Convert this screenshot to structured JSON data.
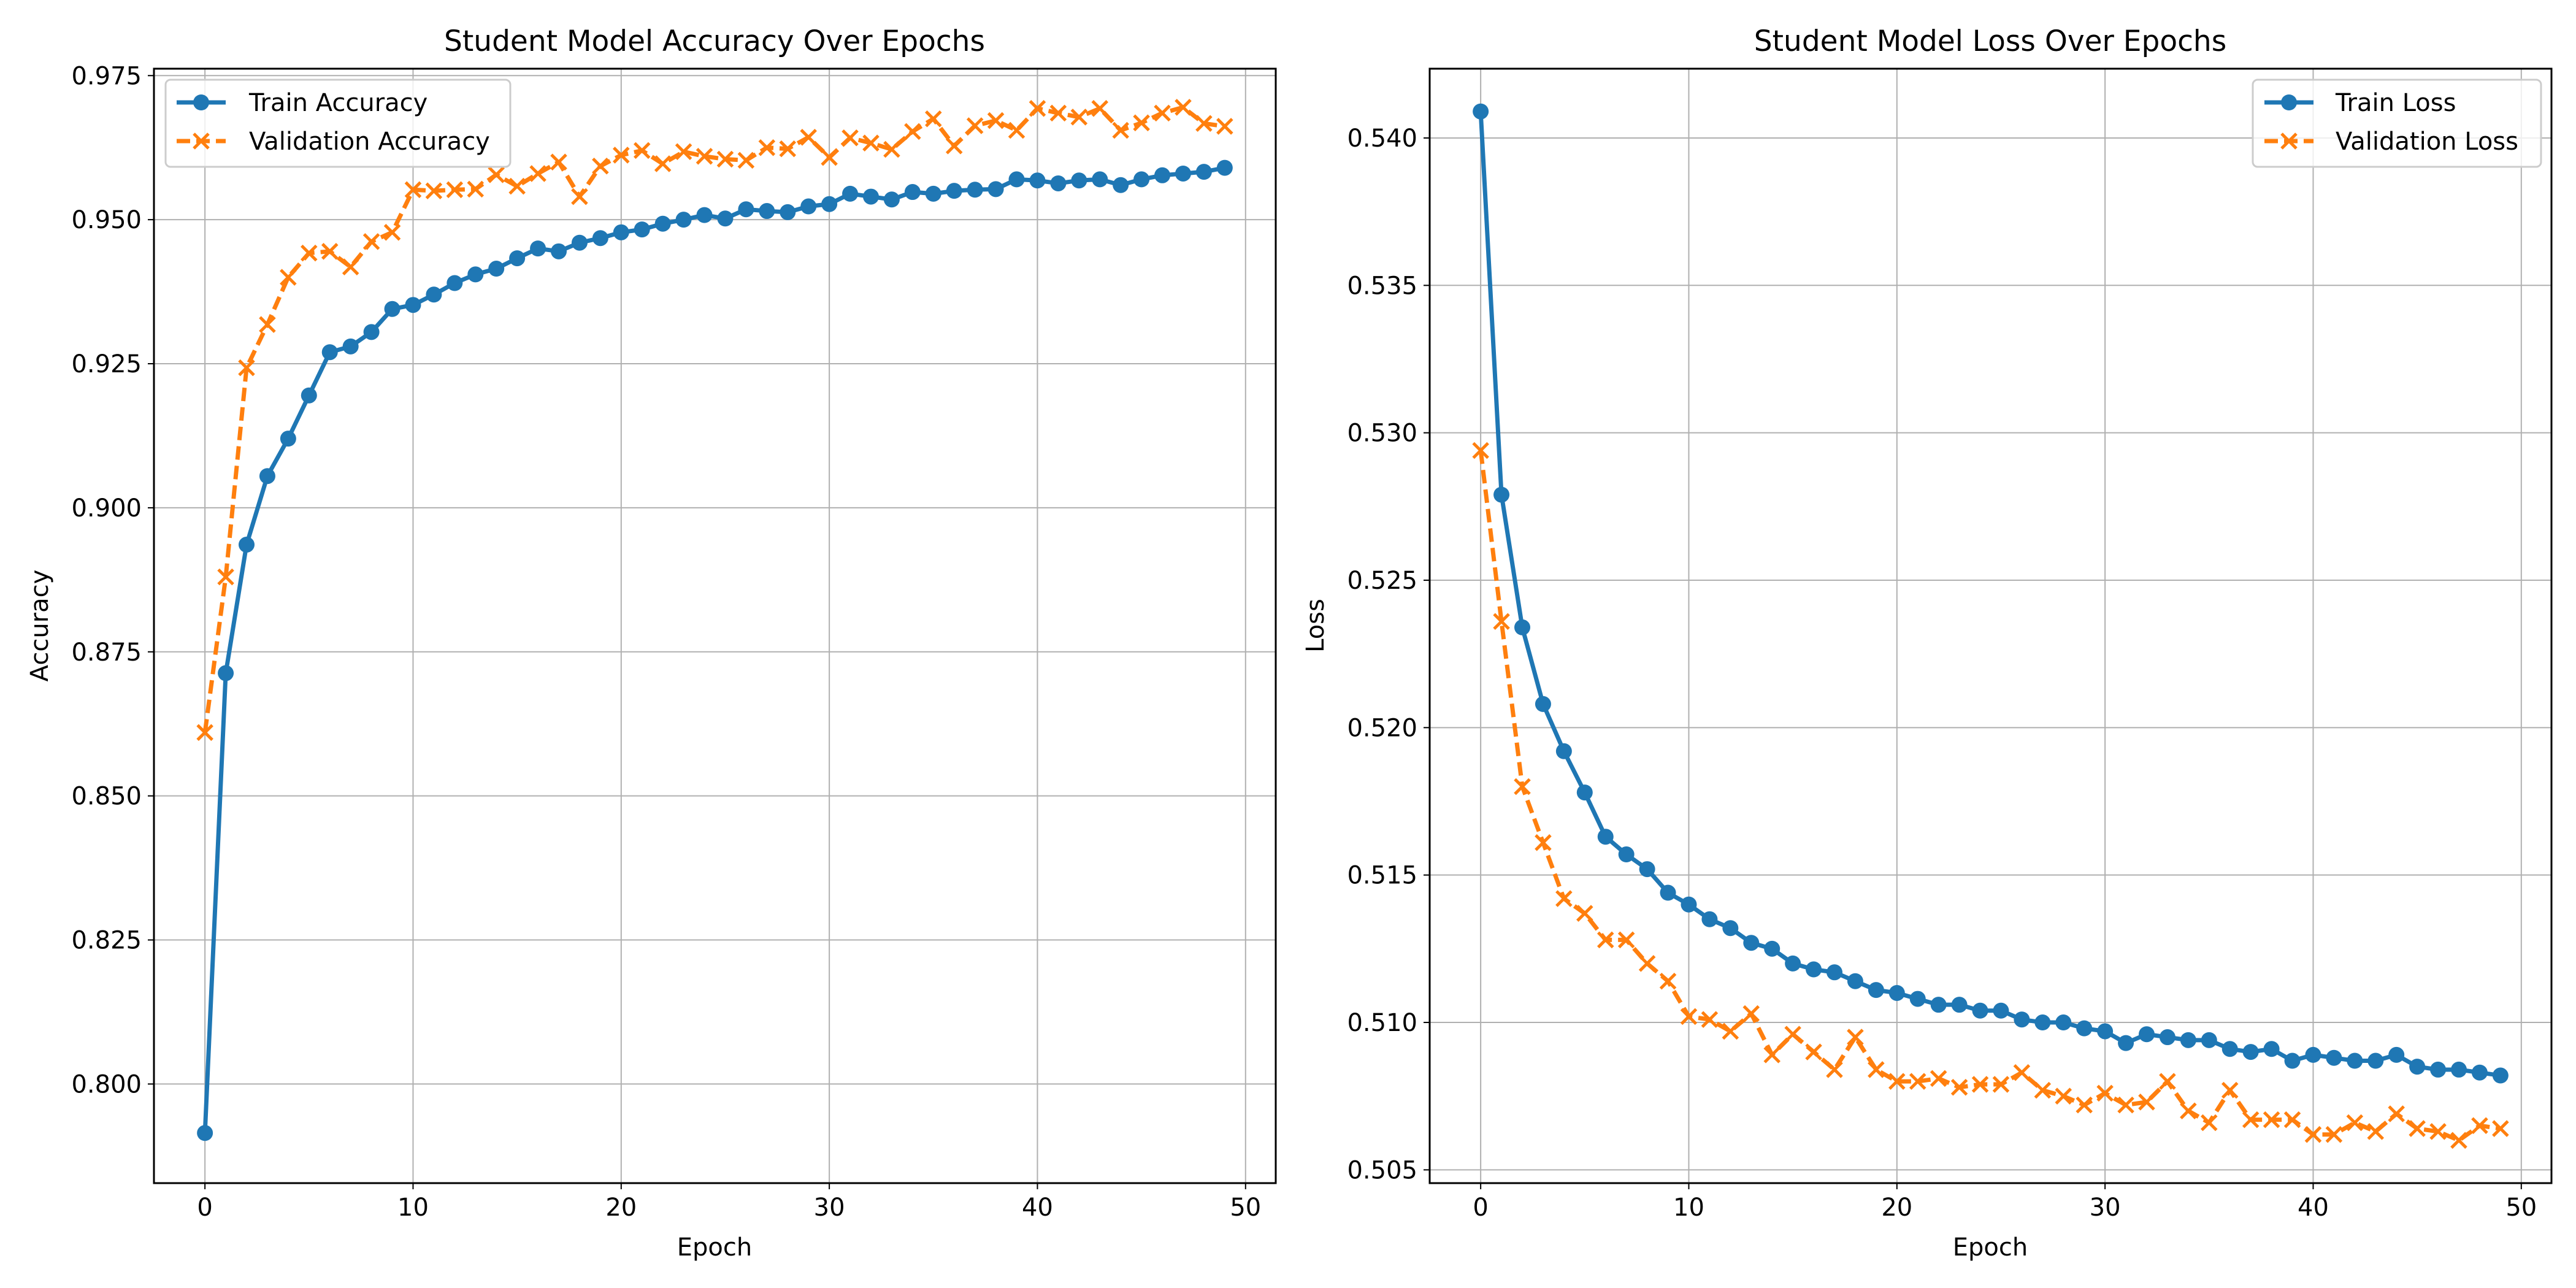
{
  "chart_data": [
    {
      "type": "line",
      "title": "Student Model Accuracy Over Epochs",
      "xlabel": "Epoch",
      "ylabel": "Accuracy",
      "xlim": [
        -2.45,
        51.45
      ],
      "ylim": [
        0.7828,
        0.9762
      ],
      "xticks": [
        0,
        10,
        20,
        30,
        40,
        50
      ],
      "xtick_labels": [
        "0",
        "10",
        "20",
        "30",
        "40",
        "50"
      ],
      "yticks": [
        0.8,
        0.825,
        0.85,
        0.875,
        0.9,
        0.925,
        0.95,
        0.975
      ],
      "ytick_labels": [
        "0.800",
        "0.825",
        "0.850",
        "0.875",
        "0.900",
        "0.925",
        "0.950",
        "0.975"
      ],
      "grid": true,
      "legend": "upper left",
      "x": [
        0,
        1,
        2,
        3,
        4,
        5,
        6,
        7,
        8,
        9,
        10,
        11,
        12,
        13,
        14,
        15,
        16,
        17,
        18,
        19,
        20,
        21,
        22,
        23,
        24,
        25,
        26,
        27,
        28,
        29,
        30,
        31,
        32,
        33,
        34,
        35,
        36,
        37,
        38,
        39,
        40,
        41,
        42,
        43,
        44,
        45,
        46,
        47,
        48,
        49
      ],
      "series": [
        {
          "name": "Train Accuracy",
          "color": "#1f77b4",
          "marker": "circle",
          "linestyle": "solid",
          "values": [
            0.7915,
            0.8713,
            0.8936,
            0.9055,
            0.912,
            0.9195,
            0.927,
            0.928,
            0.9305,
            0.9345,
            0.9352,
            0.937,
            0.939,
            0.9405,
            0.9415,
            0.9433,
            0.945,
            0.9445,
            0.946,
            0.9468,
            0.9478,
            0.9483,
            0.9493,
            0.95,
            0.9508,
            0.9502,
            0.9518,
            0.9515,
            0.9513,
            0.9523,
            0.9527,
            0.9545,
            0.954,
            0.9535,
            0.9548,
            0.9545,
            0.955,
            0.9552,
            0.9553,
            0.957,
            0.9568,
            0.9563,
            0.9568,
            0.957,
            0.956,
            0.957,
            0.9577,
            0.958,
            0.9583,
            0.959
          ]
        },
        {
          "name": "Validation Accuracy",
          "color": "#ff7f0e",
          "marker": "x",
          "linestyle": "dashed",
          "values": [
            0.861,
            0.888,
            0.9243,
            0.9318,
            0.94,
            0.9442,
            0.9445,
            0.9418,
            0.9462,
            0.9478,
            0.9552,
            0.955,
            0.9552,
            0.9553,
            0.9578,
            0.9558,
            0.958,
            0.96,
            0.954,
            0.9593,
            0.9612,
            0.962,
            0.9597,
            0.9618,
            0.961,
            0.9605,
            0.9603,
            0.9625,
            0.9623,
            0.9643,
            0.9608,
            0.9642,
            0.9633,
            0.9622,
            0.9653,
            0.9675,
            0.9628,
            0.9663,
            0.9672,
            0.9655,
            0.9693,
            0.9685,
            0.9678,
            0.9693,
            0.9655,
            0.9668,
            0.9685,
            0.9695,
            0.9667,
            0.9662
          ]
        }
      ]
    },
    {
      "type": "line",
      "title": "Student Model Loss Over Epochs",
      "xlabel": "Epoch",
      "ylabel": "Loss",
      "xlim": [
        -2.45,
        51.45
      ],
      "ylim": [
        0.50455,
        0.54235
      ],
      "xticks": [
        0,
        10,
        20,
        30,
        40,
        50
      ],
      "xtick_labels": [
        "0",
        "10",
        "20",
        "30",
        "40",
        "50"
      ],
      "yticks": [
        0.505,
        0.51,
        0.515,
        0.52,
        0.525,
        0.53,
        0.535,
        0.54
      ],
      "ytick_labels": [
        "0.505",
        "0.510",
        "0.515",
        "0.520",
        "0.525",
        "0.530",
        "0.535",
        "0.540"
      ],
      "grid": true,
      "legend": "upper right",
      "x": [
        0,
        1,
        2,
        3,
        4,
        5,
        6,
        7,
        8,
        9,
        10,
        11,
        12,
        13,
        14,
        15,
        16,
        17,
        18,
        19,
        20,
        21,
        22,
        23,
        24,
        25,
        26,
        27,
        28,
        29,
        30,
        31,
        32,
        33,
        34,
        35,
        36,
        37,
        38,
        39,
        40,
        41,
        42,
        43,
        44,
        45,
        46,
        47,
        48,
        49
      ],
      "series": [
        {
          "name": "Train Loss",
          "color": "#1f77b4",
          "marker": "circle",
          "linestyle": "solid",
          "values": [
            0.5409,
            0.5279,
            0.5234,
            0.5208,
            0.5192,
            0.5178,
            0.5163,
            0.5157,
            0.5152,
            0.5144,
            0.514,
            0.5135,
            0.5132,
            0.5127,
            0.5125,
            0.512,
            0.5118,
            0.5117,
            0.5114,
            0.5111,
            0.511,
            0.5108,
            0.5106,
            0.5106,
            0.5104,
            0.5104,
            0.5101,
            0.51,
            0.51,
            0.5098,
            0.5097,
            0.5093,
            0.5096,
            0.5095,
            0.5094,
            0.5094,
            0.5091,
            0.509,
            0.5091,
            0.5087,
            0.5089,
            0.5088,
            0.5087,
            0.5087,
            0.5089,
            0.5085,
            0.5084,
            0.5084,
            0.5083,
            0.5082
          ]
        },
        {
          "name": "Validation Loss",
          "color": "#ff7f0e",
          "marker": "x",
          "linestyle": "dashed",
          "values": [
            0.5294,
            0.5236,
            0.518,
            0.5161,
            0.5142,
            0.5137,
            0.5128,
            0.5128,
            0.512,
            0.5114,
            0.5102,
            0.5101,
            0.5097,
            0.5103,
            0.5089,
            0.5096,
            0.509,
            0.5084,
            0.5095,
            0.5084,
            0.508,
            0.508,
            0.5081,
            0.5078,
            0.5079,
            0.5079,
            0.5083,
            0.5077,
            0.5075,
            0.5072,
            0.5076,
            0.5072,
            0.5073,
            0.508,
            0.507,
            0.5066,
            0.5077,
            0.5067,
            0.5067,
            0.5067,
            0.5062,
            0.5062,
            0.5066,
            0.5063,
            0.5069,
            0.5064,
            0.5063,
            0.506,
            0.5065,
            0.5064
          ]
        }
      ]
    }
  ]
}
